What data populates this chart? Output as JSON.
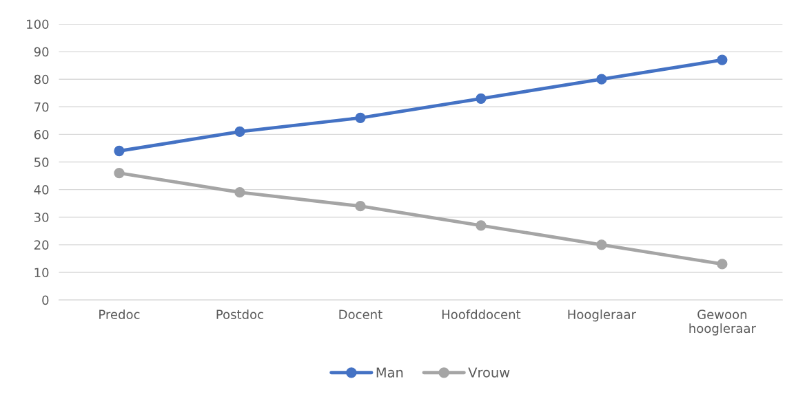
{
  "chart_data": {
    "type": "line",
    "categories": [
      "Predoc",
      "Postdoc",
      "Docent",
      "Hoofddocent",
      "Hoogleraar",
      "Gewoon hoogleraar"
    ],
    "series": [
      {
        "name": "Man",
        "color": "#4472c4",
        "values": [
          54,
          61,
          66,
          73,
          80,
          87
        ]
      },
      {
        "name": "Vrouw",
        "color": "#a5a5a5",
        "values": [
          46,
          39,
          34,
          27,
          20,
          13
        ]
      }
    ],
    "ylim": [
      0,
      100
    ],
    "yticks": [
      0,
      10,
      20,
      30,
      40,
      50,
      60,
      70,
      80,
      90,
      100
    ],
    "grid": "y",
    "legend": "bottom",
    "marker": "circle",
    "line_style": "solid"
  }
}
